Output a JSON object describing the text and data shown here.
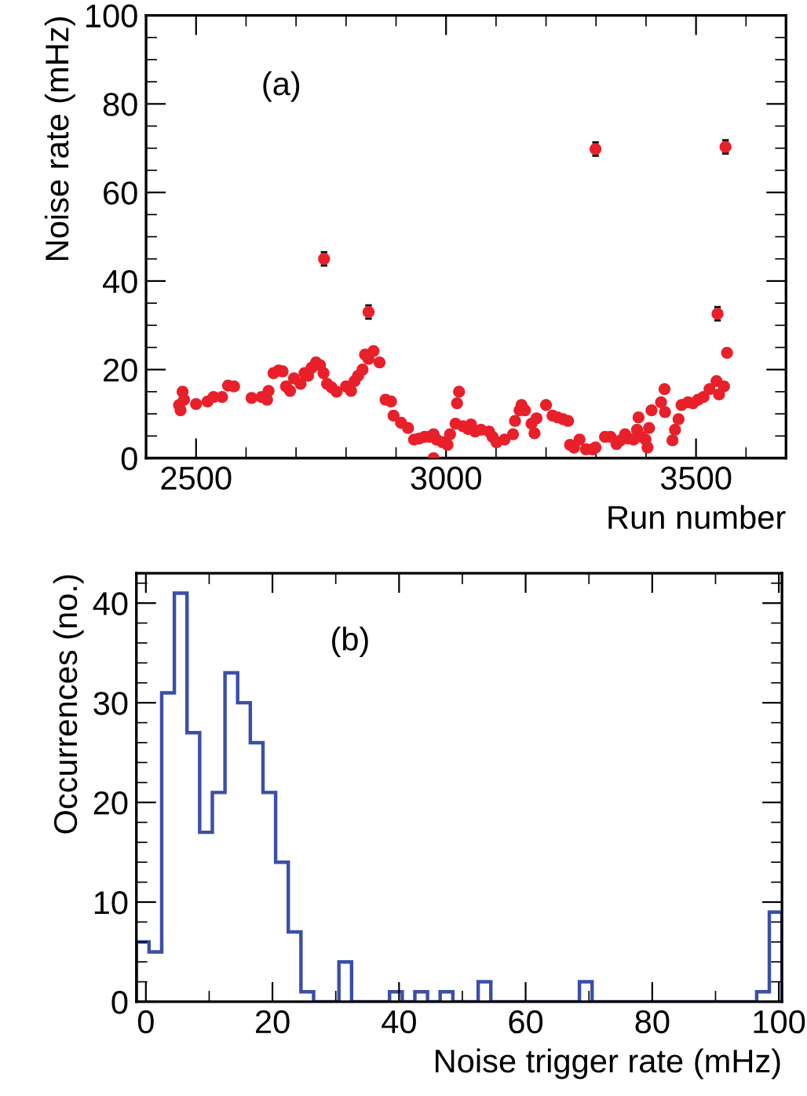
{
  "chart_data": [
    {
      "type": "scatter",
      "xlabel": "Run number",
      "ylabel": "Noise rate (mHz)",
      "annotations": [
        "(a)"
      ],
      "color": "#e8202a",
      "marker": "circle",
      "grid": false,
      "legend": false,
      "xlim": [
        2400,
        3680
      ],
      "xticks": [
        2500,
        3000,
        3500
      ],
      "ylim": [
        0,
        100
      ],
      "yticks": [
        0,
        20,
        40,
        60,
        80,
        100
      ],
      "x": [
        2466,
        2469,
        2473,
        2476,
        2500,
        2523,
        2535,
        2552,
        2564,
        2576,
        2611,
        2631,
        2642,
        2645,
        2655,
        2665,
        2673,
        2680,
        2688,
        2696,
        2709,
        2717,
        2724,
        2731,
        2740,
        2748,
        2755,
        2762,
        2771,
        2781,
        2800,
        2810,
        2817,
        2824,
        2833,
        2838,
        2845,
        2855,
        2867,
        2756,
        2845,
        2879,
        2890,
        2895,
        2910,
        2924,
        2936,
        2946,
        2957,
        2967,
        2975,
        2981,
        2975,
        2993,
        3003,
        3008,
        3019,
        3022,
        3026,
        3034,
        3044,
        3050,
        3058,
        3070,
        3086,
        3093,
        3101,
        3117,
        3134,
        3138,
        3147,
        3151,
        3158,
        3171,
        3177,
        3181,
        3200,
        3213,
        3223,
        3234,
        3244,
        3248,
        3256,
        3267,
        3280,
        3293,
        3299,
        3299,
        3318,
        3329,
        3341,
        3349,
        3358,
        3365,
        3375,
        3382,
        3385,
        3391,
        3399,
        3403,
        3406,
        3411,
        3430,
        3437,
        3438,
        3453,
        3458,
        3465,
        3471,
        3484,
        3494,
        3504,
        3515,
        3527,
        3541,
        3546,
        3556,
        3543,
        3562,
        3559
      ],
      "values": [
        12.0,
        10.8,
        15.0,
        13.2,
        12.2,
        12.8,
        13.8,
        13.8,
        16.4,
        16.2,
        13.6,
        13.8,
        13.2,
        15.2,
        19.2,
        19.8,
        19.6,
        16.2,
        15.2,
        18.0,
        16.8,
        19.2,
        18.6,
        20.4,
        21.6,
        21.0,
        19.2,
        16.8,
        16.0,
        15.0,
        16.2,
        15.2,
        17.4,
        18.6,
        20.0,
        23.4,
        22.4,
        24.2,
        21.6,
        45.0,
        33.0,
        13.2,
        12.8,
        9.6,
        8.0,
        6.8,
        4.2,
        4.4,
        4.8,
        4.8,
        5.4,
        4.2,
        0,
        3.6,
        3.0,
        5.4,
        7.8,
        12.4,
        15.0,
        7.2,
        6.6,
        7.6,
        6.0,
        6.4,
        6.0,
        4.8,
        3.6,
        4.2,
        5.4,
        8.4,
        10.8,
        12.0,
        10.8,
        7.8,
        5.6,
        9.0,
        12.0,
        9.6,
        9.2,
        8.8,
        8.4,
        3.0,
        2.4,
        4.2,
        2.0,
        2.0,
        2.4,
        69.8,
        4.8,
        4.8,
        3.2,
        4.0,
        5.4,
        4.4,
        4.2,
        6.4,
        9.2,
        4.8,
        4.2,
        2.4,
        6.8,
        10.8,
        12.6,
        15.6,
        10.4,
        4.0,
        6.4,
        8.8,
        12.0,
        12.6,
        12.4,
        13.2,
        13.8,
        15.6,
        17.4,
        14.4,
        16.2,
        32.6,
        23.8,
        70.3
      ],
      "errors": [
        null,
        null,
        null,
        null,
        null,
        null,
        null,
        null,
        null,
        null,
        null,
        null,
        null,
        null,
        null,
        null,
        null,
        null,
        null,
        null,
        null,
        null,
        null,
        null,
        null,
        null,
        null,
        null,
        null,
        null,
        null,
        null,
        null,
        null,
        null,
        null,
        null,
        null,
        null,
        1.5,
        1.5,
        null,
        null,
        null,
        null,
        null,
        null,
        null,
        null,
        null,
        null,
        null,
        null,
        null,
        null,
        null,
        null,
        null,
        null,
        null,
        null,
        null,
        null,
        null,
        null,
        null,
        null,
        null,
        null,
        null,
        null,
        null,
        null,
        null,
        null,
        null,
        null,
        null,
        null,
        null,
        null,
        null,
        null,
        null,
        null,
        null,
        null,
        1.5,
        null,
        null,
        null,
        null,
        null,
        null,
        null,
        null,
        null,
        null,
        null,
        null,
        null,
        null,
        null,
        null,
        null,
        null,
        null,
        null,
        null,
        null,
        null,
        null,
        null,
        null,
        null,
        null,
        null,
        1.5,
        null,
        1.5
      ]
    },
    {
      "type": "histogram",
      "xlabel": "Noise trigger rate (mHz)",
      "ylabel": "Occurrences (no.)",
      "annotations": [
        "(b)"
      ],
      "color": "#3b4fa8",
      "grid": false,
      "legend": false,
      "xlim": [
        -1.5,
        100.5
      ],
      "xticks": [
        0,
        20,
        40,
        60,
        80,
        100
      ],
      "ylim": [
        0,
        43
      ],
      "yticks": [
        0,
        10,
        20,
        30,
        40
      ],
      "bins": [
        -1.5,
        0.5,
        2.5,
        4.5,
        6.5,
        8.5,
        10.5,
        12.5,
        14.5,
        16.5,
        18.5,
        20.5,
        22.5,
        24.5,
        26.5,
        28.5,
        30.5,
        32.5,
        34.5,
        36.5,
        38.5,
        40.5,
        42.5,
        44.5,
        46.5,
        48.5,
        50.5,
        52.5,
        54.5,
        56.5,
        58.5,
        60.5,
        62.5,
        64.5,
        66.5,
        68.5,
        70.5,
        72.5,
        74.5,
        76.5,
        78.5,
        80.5,
        82.5,
        84.5,
        86.5,
        88.5,
        90.5,
        92.5,
        94.5,
        96.5,
        98.5,
        100.5
      ],
      "values": [
        6,
        5,
        31,
        41,
        27,
        17,
        21,
        33,
        30,
        26,
        21,
        14,
        7,
        1,
        0,
        0,
        4,
        0,
        0,
        0,
        1,
        0,
        1,
        0,
        1,
        0,
        0,
        2,
        0,
        0,
        0,
        0,
        0,
        0,
        0,
        2,
        0,
        0,
        0,
        0,
        0,
        0,
        0,
        0,
        0,
        0,
        0,
        0,
        0,
        1,
        9
      ]
    }
  ]
}
